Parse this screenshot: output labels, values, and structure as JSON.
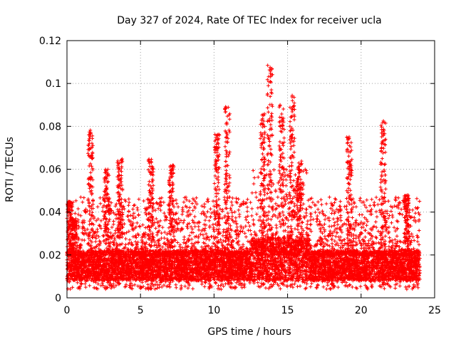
{
  "chart_data": {
    "type": "scatter",
    "title": "Day 327 of 2024, Rate Of TEC Index for receiver ucla",
    "xlabel": "GPS time / hours",
    "ylabel": "ROTI / TECUs",
    "xlim": [
      0,
      25
    ],
    "ylim": [
      0,
      0.12
    ],
    "xticks": [
      "0",
      "5",
      "10",
      "15",
      "20",
      "25"
    ],
    "yticks": [
      "0",
      "0.02",
      "0.04",
      "0.06",
      "0.08",
      "0.1",
      "0.12"
    ],
    "grid": true,
    "marker": "+",
    "series_color": "#ff0000",
    "baseline_band": [
      0.008,
      0.022
    ],
    "peaks": [
      {
        "x": 0.2,
        "y": 0.045
      },
      {
        "x": 0.5,
        "y": 0.037
      },
      {
        "x": 1.6,
        "y": 0.079
      },
      {
        "x": 2.7,
        "y": 0.06
      },
      {
        "x": 3.6,
        "y": 0.065
      },
      {
        "x": 5.7,
        "y": 0.065
      },
      {
        "x": 7.1,
        "y": 0.062
      },
      {
        "x": 10.2,
        "y": 0.077
      },
      {
        "x": 10.9,
        "y": 0.09
      },
      {
        "x": 13.3,
        "y": 0.086
      },
      {
        "x": 13.8,
        "y": 0.11
      },
      {
        "x": 14.6,
        "y": 0.09
      },
      {
        "x": 15.3,
        "y": 0.095
      },
      {
        "x": 15.8,
        "y": 0.064
      },
      {
        "x": 19.2,
        "y": 0.076
      },
      {
        "x": 21.5,
        "y": 0.083
      },
      {
        "x": 23.1,
        "y": 0.048
      }
    ]
  }
}
